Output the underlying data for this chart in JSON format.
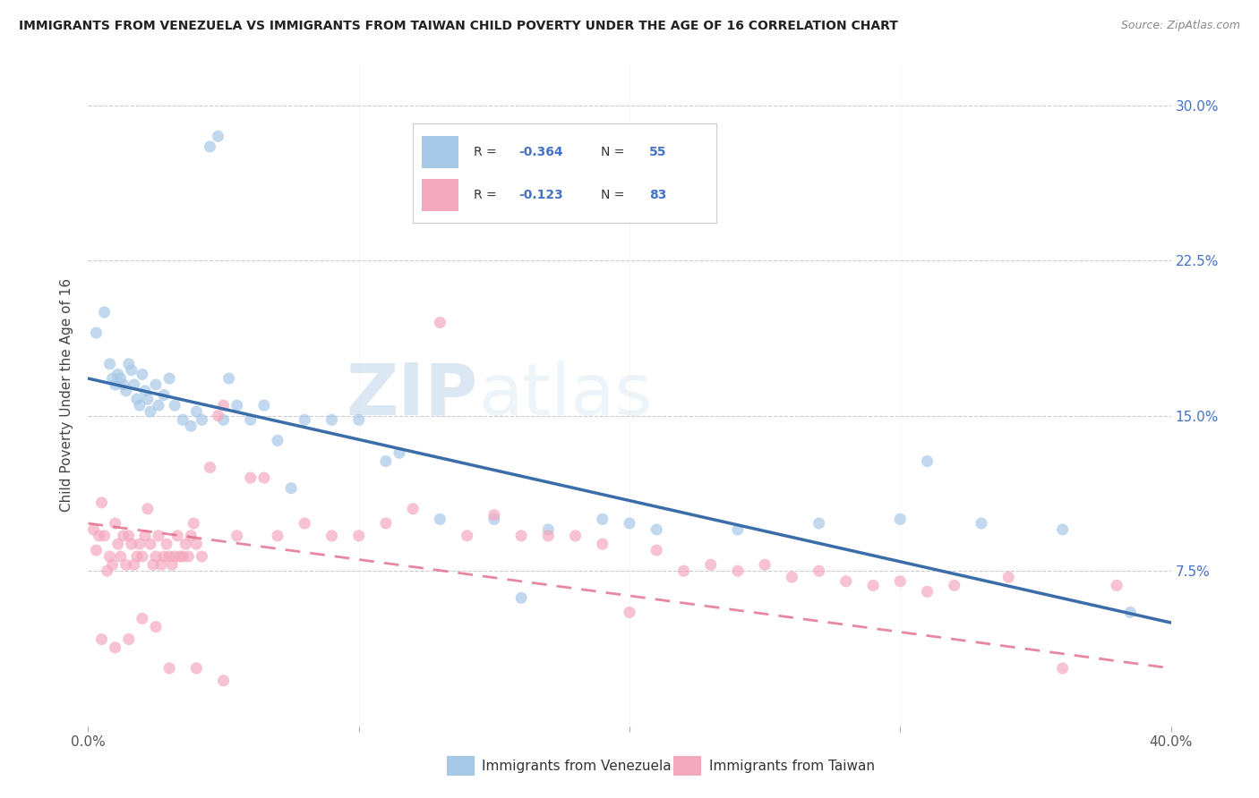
{
  "title": "IMMIGRANTS FROM VENEZUELA VS IMMIGRANTS FROM TAIWAN CHILD POVERTY UNDER THE AGE OF 16 CORRELATION CHART",
  "source": "Source: ZipAtlas.com",
  "ylabel": "Child Poverty Under the Age of 16",
  "yticks": [
    0.0,
    0.075,
    0.15,
    0.225,
    0.3
  ],
  "ytick_labels": [
    "",
    "7.5%",
    "15.0%",
    "22.5%",
    "30.0%"
  ],
  "xmin": 0.0,
  "xmax": 0.4,
  "ymin": 0.0,
  "ymax": 0.32,
  "blue_color": "#a8c8e8",
  "pink_color": "#f4a8be",
  "line_blue": "#3a6daa",
  "line_pink": "#e06080",
  "watermark_zip": "ZIP",
  "watermark_atlas": "atlas",
  "footer_label1": "Immigrants from Venezuela",
  "footer_label2": "Immigrants from Taiwan",
  "venezuela_x": [
    0.003,
    0.006,
    0.008,
    0.009,
    0.01,
    0.011,
    0.012,
    0.013,
    0.014,
    0.015,
    0.016,
    0.017,
    0.018,
    0.019,
    0.02,
    0.021,
    0.022,
    0.023,
    0.025,
    0.026,
    0.028,
    0.03,
    0.032,
    0.035,
    0.038,
    0.04,
    0.042,
    0.045,
    0.048,
    0.052,
    0.055,
    0.06,
    0.065,
    0.07,
    0.08,
    0.09,
    0.1,
    0.115,
    0.13,
    0.15,
    0.17,
    0.19,
    0.21,
    0.24,
    0.27,
    0.3,
    0.31,
    0.33,
    0.36,
    0.385,
    0.05,
    0.075,
    0.11,
    0.16,
    0.2
  ],
  "venezuela_y": [
    0.19,
    0.2,
    0.175,
    0.168,
    0.165,
    0.17,
    0.168,
    0.165,
    0.162,
    0.175,
    0.172,
    0.165,
    0.158,
    0.155,
    0.17,
    0.162,
    0.158,
    0.152,
    0.165,
    0.155,
    0.16,
    0.168,
    0.155,
    0.148,
    0.145,
    0.152,
    0.148,
    0.28,
    0.285,
    0.168,
    0.155,
    0.148,
    0.155,
    0.138,
    0.148,
    0.148,
    0.148,
    0.132,
    0.1,
    0.1,
    0.095,
    0.1,
    0.095,
    0.095,
    0.098,
    0.1,
    0.128,
    0.098,
    0.095,
    0.055,
    0.148,
    0.115,
    0.128,
    0.062,
    0.098
  ],
  "taiwan_x": [
    0.002,
    0.003,
    0.004,
    0.005,
    0.006,
    0.007,
    0.008,
    0.009,
    0.01,
    0.011,
    0.012,
    0.013,
    0.014,
    0.015,
    0.016,
    0.017,
    0.018,
    0.019,
    0.02,
    0.021,
    0.022,
    0.023,
    0.024,
    0.025,
    0.026,
    0.027,
    0.028,
    0.029,
    0.03,
    0.031,
    0.032,
    0.033,
    0.034,
    0.035,
    0.036,
    0.037,
    0.038,
    0.039,
    0.04,
    0.042,
    0.045,
    0.048,
    0.05,
    0.055,
    0.06,
    0.065,
    0.07,
    0.08,
    0.09,
    0.1,
    0.11,
    0.12,
    0.13,
    0.14,
    0.15,
    0.16,
    0.17,
    0.18,
    0.19,
    0.2,
    0.21,
    0.22,
    0.23,
    0.24,
    0.25,
    0.26,
    0.27,
    0.28,
    0.29,
    0.3,
    0.31,
    0.32,
    0.34,
    0.36,
    0.38,
    0.005,
    0.01,
    0.015,
    0.02,
    0.025,
    0.03,
    0.04,
    0.05
  ],
  "taiwan_y": [
    0.095,
    0.085,
    0.092,
    0.108,
    0.092,
    0.075,
    0.082,
    0.078,
    0.098,
    0.088,
    0.082,
    0.092,
    0.078,
    0.092,
    0.088,
    0.078,
    0.082,
    0.088,
    0.082,
    0.092,
    0.105,
    0.088,
    0.078,
    0.082,
    0.092,
    0.078,
    0.082,
    0.088,
    0.082,
    0.078,
    0.082,
    0.092,
    0.082,
    0.082,
    0.088,
    0.082,
    0.092,
    0.098,
    0.088,
    0.082,
    0.125,
    0.15,
    0.155,
    0.092,
    0.12,
    0.12,
    0.092,
    0.098,
    0.092,
    0.092,
    0.098,
    0.105,
    0.195,
    0.092,
    0.102,
    0.092,
    0.092,
    0.092,
    0.088,
    0.055,
    0.085,
    0.075,
    0.078,
    0.075,
    0.078,
    0.072,
    0.075,
    0.07,
    0.068,
    0.07,
    0.065,
    0.068,
    0.072,
    0.028,
    0.068,
    0.042,
    0.038,
    0.042,
    0.052,
    0.048,
    0.028,
    0.028,
    0.022
  ],
  "ven_line_x0": 0.0,
  "ven_line_y0": 0.168,
  "ven_line_x1": 0.4,
  "ven_line_y1": 0.05,
  "tai_line_x0": 0.0,
  "tai_line_y0": 0.098,
  "tai_line_x1": 0.4,
  "tai_line_y1": 0.028
}
